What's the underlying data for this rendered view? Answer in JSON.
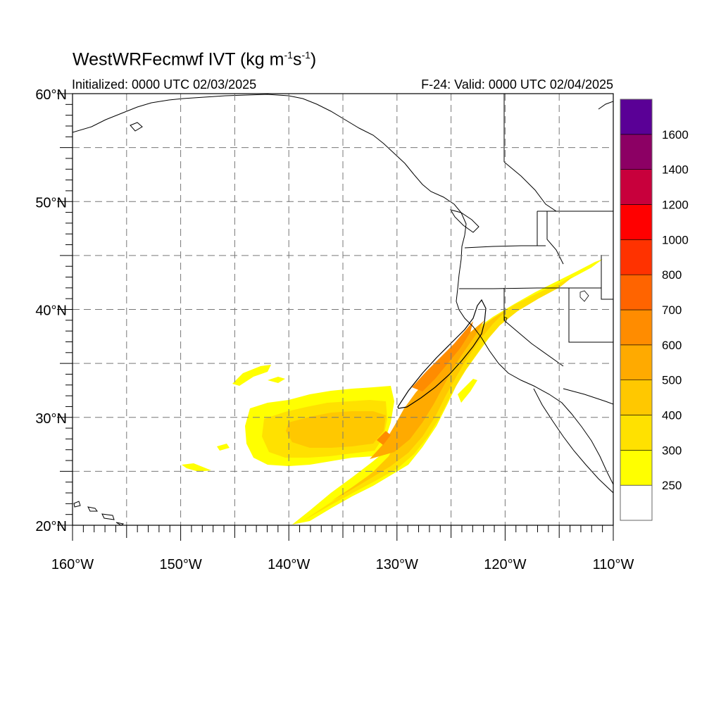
{
  "header": {
    "title": "WestWRFecmwf IVT",
    "units_prefix": "(kg m",
    "units_exp1": "-1",
    "units_mid": "s",
    "units_exp2": "-1",
    "units_suffix": ")",
    "initialized": "Initialized: 0000 UTC 02/03/2025",
    "valid": "F-24: Valid: 0000 UTC 02/04/2025"
  },
  "map": {
    "projection": "cylindrical-equidistant",
    "lon_range": [
      -160,
      -110
    ],
    "lat_range": [
      20,
      60
    ],
    "lat_ticks": [
      {
        "value": 60,
        "label": "60°N"
      },
      {
        "value": 50,
        "label": "50°N"
      },
      {
        "value": 40,
        "label": "40°N"
      },
      {
        "value": 30,
        "label": "30°N"
      },
      {
        "value": 20,
        "label": "20°N"
      }
    ],
    "lon_ticks": [
      {
        "value": -160,
        "label": "160°W"
      },
      {
        "value": -150,
        "label": "150°W"
      },
      {
        "value": -140,
        "label": "140°W"
      },
      {
        "value": -130,
        "label": "130°W"
      },
      {
        "value": -120,
        "label": "120°W"
      },
      {
        "value": -110,
        "label": "110°W"
      }
    ],
    "grid_spacing_deg": 5,
    "grid_style": "dashed gray"
  },
  "colorbar": {
    "levels": [
      250,
      300,
      400,
      500,
      600,
      700,
      800,
      1000,
      1200,
      1400,
      1600
    ],
    "colors": [
      "#ffffff",
      "#ffff00",
      "#ffe100",
      "#ffc800",
      "#ffaa00",
      "#ff8c00",
      "#ff6400",
      "#ff3200",
      "#ff0000",
      "#c8003c",
      "#8c0064",
      "#5a0096"
    ],
    "labels": [
      "250",
      "300",
      "400",
      "500",
      "600",
      "700",
      "800",
      "1000",
      "1200",
      "1400",
      "1600"
    ]
  }
}
